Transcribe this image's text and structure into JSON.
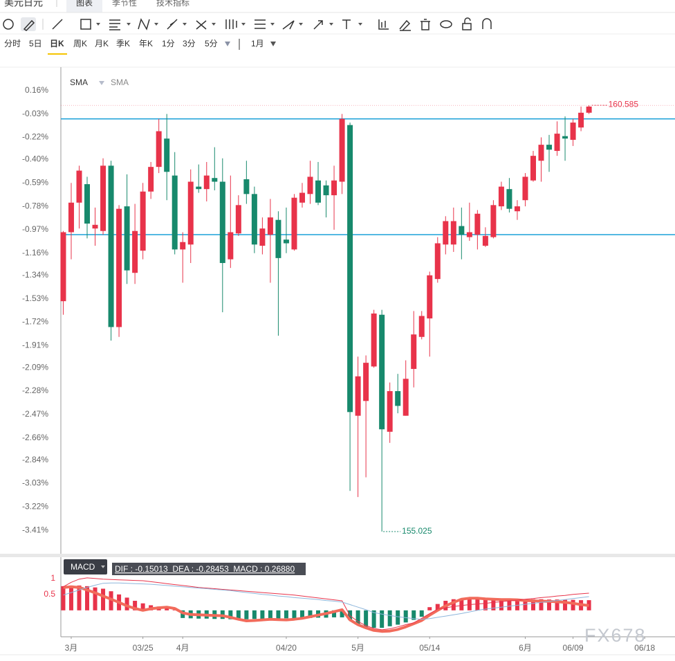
{
  "header": {
    "tabs": [
      "美元日元",
      "图表",
      "季节性",
      "技术指标"
    ],
    "periods": [
      "分时",
      "5日",
      "日K",
      "周K",
      "月K",
      "季K",
      "年K",
      "1分",
      "3分",
      "5分"
    ],
    "interval": "1月",
    "watermark": "FX678"
  },
  "chart_data": [
    {
      "type": "candlestick",
      "legend": [
        "SMA",
        "SMA"
      ],
      "up_color": "#e8334a",
      "down_color": "#17896c",
      "xlim": [
        -0.3,
        76.8
      ],
      "ylim": [
        -3.6,
        0.35
      ],
      "yticks": [
        {
          "value": 0.16,
          "label": "0.16%"
        },
        {
          "value": -0.03,
          "label": "-0.03%"
        },
        {
          "value": -0.22,
          "label": "-0.22%"
        },
        {
          "value": -0.4,
          "label": "-0.40%"
        },
        {
          "value": -0.59,
          "label": "-0.59%"
        },
        {
          "value": -0.78,
          "label": "-0.78%"
        },
        {
          "value": -0.97,
          "label": "-0.97%"
        },
        {
          "value": -1.16,
          "label": "-1.16%"
        },
        {
          "value": -1.34,
          "label": "-1.34%"
        },
        {
          "value": -1.53,
          "label": "-1.53%"
        },
        {
          "value": -1.72,
          "label": "-1.72%"
        },
        {
          "value": -1.91,
          "label": "-1.91%"
        },
        {
          "value": -2.09,
          "label": "-2.09%"
        },
        {
          "value": -2.28,
          "label": "-2.28%"
        },
        {
          "value": -2.47,
          "label": "-2.47%"
        },
        {
          "value": -2.66,
          "label": "-2.66%"
        },
        {
          "value": -2.84,
          "label": "-2.84%"
        },
        {
          "value": -3.03,
          "label": "-3.03%"
        },
        {
          "value": -3.22,
          "label": "-3.22%"
        },
        {
          "value": -3.41,
          "label": "-3.41%"
        }
      ],
      "open": [
        -1.55,
        -0.99,
        -0.75,
        -0.6,
        -0.96,
        -0.98,
        -0.45,
        -1.76,
        -0.78,
        -1.32,
        -1.14,
        -0.66,
        -0.46,
        -0.23,
        -0.53,
        -1.13,
        -1.09,
        -0.62,
        -0.64,
        -0.55,
        -0.58,
        -1.21,
        -1.0,
        -0.56,
        -0.68,
        -1.1,
        -1.01,
        -0.89,
        -1.05,
        -1.13,
        -0.75,
        -0.68,
        -0.57,
        -0.61,
        -0.69,
        -0.58,
        -0.12,
        -2.48,
        -2.36,
        -2.08,
        -1.66,
        -2.61,
        -2.28,
        -2.48,
        -2.1,
        -1.84,
        -1.69,
        -1.37,
        -1.09,
        -1.09,
        -0.94,
        -1.03,
        -1.01,
        -1.1,
        -1.03,
        -0.78,
        -0.64,
        -0.82,
        -0.73,
        -0.57,
        -0.41,
        -0.28,
        -0.33,
        -0.21,
        -0.24,
        -0.14,
        -0.02
      ],
      "high": [
        -0.98,
        -0.59,
        -0.45,
        -0.54,
        -0.79,
        -0.39,
        -0.41,
        -0.77,
        -0.52,
        -0.76,
        -0.59,
        -0.42,
        -0.07,
        -0.03,
        -0.34,
        -0.99,
        -0.48,
        -0.44,
        -0.42,
        -0.3,
        -0.39,
        -0.53,
        -0.69,
        -0.41,
        -0.62,
        -0.87,
        -0.72,
        -0.82,
        -0.79,
        -0.68,
        -0.59,
        -0.41,
        -0.42,
        -0.57,
        -0.45,
        -0.03,
        -0.1,
        -2.0,
        -1.99,
        -1.62,
        -1.62,
        -2.21,
        -2.14,
        -2.03,
        -1.63,
        -1.63,
        -1.31,
        -1.03,
        -0.86,
        -0.79,
        -0.79,
        -0.75,
        -0.81,
        -0.95,
        -0.73,
        -0.58,
        -0.55,
        -0.73,
        -0.51,
        -0.33,
        -0.22,
        -0.2,
        -0.09,
        -0.05,
        -0.07,
        0.03,
        0.04
      ],
      "low": [
        -1.66,
        -1.21,
        -0.96,
        -1.04,
        -1.1,
        -1.01,
        -1.87,
        -1.84,
        -1.41,
        -1.41,
        -1.21,
        -0.72,
        -0.51,
        -0.73,
        -1.17,
        -1.4,
        -1.24,
        -0.67,
        -0.74,
        -0.65,
        -1.64,
        -1.28,
        -1.02,
        -0.76,
        -1.16,
        -1.17,
        -1.4,
        -1.83,
        -1.16,
        -1.14,
        -0.79,
        -0.76,
        -0.77,
        -0.87,
        -0.97,
        -0.68,
        -3.09,
        -3.14,
        -2.98,
        -2.09,
        -3.42,
        -2.7,
        -2.46,
        -2.48,
        -2.25,
        -1.86,
        -2.0,
        -1.4,
        -1.17,
        -1.15,
        -1.21,
        -1.06,
        -1.13,
        -1.11,
        -1.04,
        -0.81,
        -0.83,
        -0.89,
        -0.78,
        -0.58,
        -0.58,
        -0.5,
        -0.37,
        -0.41,
        -0.29,
        -0.17,
        -0.03
      ],
      "close": [
        -0.99,
        -0.75,
        -0.49,
        -0.92,
        -0.93,
        -0.45,
        -1.76,
        -0.8,
        -1.3,
        -0.98,
        -0.66,
        -0.46,
        -0.17,
        -0.5,
        -1.13,
        -1.07,
        -0.58,
        -0.64,
        -0.53,
        -0.58,
        -1.24,
        -0.99,
        -0.77,
        -0.68,
        -1.09,
        -0.96,
        -0.87,
        -1.2,
        -1.08,
        -0.71,
        -0.67,
        -0.54,
        -0.75,
        -0.69,
        -0.57,
        -0.07,
        -2.45,
        -2.16,
        -2.05,
        -1.65,
        -2.59,
        -2.28,
        -2.4,
        -2.18,
        -1.82,
        -1.67,
        -1.34,
        -1.08,
        -0.9,
        -0.9,
        -1.01,
        -0.99,
        -0.84,
        -1.02,
        -0.77,
        -0.62,
        -0.8,
        -0.78,
        -0.54,
        -0.37,
        -0.28,
        -0.32,
        -0.19,
        -0.23,
        -0.1,
        -0.02,
        0.03
      ],
      "hlines": [
        -0.07,
        -1.01
      ],
      "hline_color": "#1aa0d8",
      "high_label": "160.585",
      "low_label": "155.025"
    },
    {
      "type": "macd",
      "indicator": "MACD",
      "info": "DIF : -0.15013  DEA : -0.28453  MACD : 0.26880",
      "xlim": [
        -0.3,
        76.8
      ],
      "ylim": [
        -0.83,
        1.67
      ],
      "yticks": [
        1,
        0.5
      ],
      "xticks": [
        {
          "value": 1,
          "label": "3月"
        },
        {
          "value": 10,
          "label": "03/25"
        },
        {
          "value": 15,
          "label": "4月"
        },
        {
          "value": 28,
          "label": "04/20"
        },
        {
          "value": 37,
          "label": "5月"
        },
        {
          "value": 46,
          "label": "05/14"
        },
        {
          "value": 58,
          "label": "6月"
        },
        {
          "value": 64,
          "label": "06/09"
        },
        {
          "value": 73,
          "label": "06/18"
        }
      ],
      "histogram": {
        "up_color": "#e8334a",
        "down_color": "#17896c",
        "values": [
          0.76,
          0.78,
          0.78,
          0.76,
          0.72,
          0.68,
          0.6,
          0.5,
          0.4,
          0.3,
          0.22,
          0.16,
          0.12,
          0.08,
          0.02,
          -0.24,
          -0.25,
          -0.26,
          -0.26,
          -0.27,
          -0.27,
          -0.28,
          -0.28,
          -0.28,
          -0.27,
          -0.27,
          -0.26,
          -0.26,
          -0.25,
          -0.25,
          -0.24,
          -0.24,
          -0.23,
          -0.23,
          -0.22,
          -0.22,
          -0.3,
          -0.45,
          -0.52,
          -0.55,
          -0.55,
          -0.5,
          -0.45,
          -0.38,
          -0.3,
          -0.2,
          0.1,
          0.2,
          0.3,
          0.35,
          0.37,
          0.38,
          0.38,
          0.38,
          0.37,
          0.37,
          0.36,
          0.36,
          0.35,
          0.35,
          0.35,
          0.34,
          0.34,
          0.33,
          0.33,
          0.32,
          0.32
        ]
      },
      "series": [
        {
          "color": "#f26b5b",
          "width": 4,
          "values": [
            0.72,
            0.74,
            0.72,
            0.64,
            0.55,
            0.45,
            0.35,
            0.25,
            0.14,
            0.06,
            0.0,
            0.05,
            0.08,
            0.1,
            0.06,
            -0.08,
            -0.13,
            -0.14,
            -0.15,
            -0.16,
            -0.17,
            -0.22,
            -0.28,
            -0.33,
            -0.32,
            -0.3,
            -0.28,
            -0.29,
            -0.3,
            -0.28,
            -0.25,
            -0.2,
            -0.15,
            -0.1,
            -0.04,
            0.02,
            -0.3,
            -0.45,
            -0.55,
            -0.63,
            -0.66,
            -0.65,
            -0.6,
            -0.52,
            -0.42,
            -0.32,
            -0.15,
            0.0,
            0.14,
            0.25,
            0.35,
            0.38,
            0.38,
            0.36,
            0.35,
            0.34,
            0.34,
            0.33,
            0.31,
            0.3,
            0.29,
            0.28,
            0.27,
            0.25,
            0.22,
            0.18,
            0.15
          ]
        },
        {
          "color": "#e8334a",
          "width": 1,
          "values": [
            0.74,
            0.88,
            0.98,
            1.02,
            1.0,
            0.98,
            0.97,
            0.96,
            0.95,
            0.94,
            0.93,
            0.9,
            0.87,
            0.84,
            0.81,
            0.78,
            0.75,
            0.72,
            0.7,
            0.68,
            0.66,
            0.64,
            0.62,
            0.6,
            0.58,
            0.56,
            0.54,
            0.52,
            0.5,
            0.48,
            0.45,
            0.42,
            0.39,
            0.36,
            0.33,
            0.3,
            -0.17,
            -0.35,
            -0.48,
            -0.57,
            -0.61,
            -0.58,
            -0.52,
            -0.45,
            -0.39,
            -0.25,
            -0.1,
            0.04,
            0.08,
            0.12,
            0.15,
            0.18,
            0.2,
            0.22,
            0.25,
            0.27,
            0.3,
            0.32,
            0.35,
            0.37,
            0.4,
            0.42,
            0.45,
            0.47,
            0.5,
            0.52,
            0.54
          ]
        },
        {
          "color": "#8db6db",
          "width": 1,
          "values": [
            0.48,
            0.56,
            0.64,
            0.72,
            0.79,
            0.85,
            0.86,
            0.86,
            0.85,
            0.84,
            0.83,
            0.82,
            0.8,
            0.78,
            0.76,
            0.74,
            0.72,
            0.7,
            0.68,
            0.66,
            0.64,
            0.62,
            0.59,
            0.56,
            0.53,
            0.5,
            0.48,
            0.45,
            0.43,
            0.4,
            0.38,
            0.36,
            0.34,
            0.31,
            0.29,
            0.26,
            0.18,
            0.1,
            0.02,
            -0.07,
            -0.12,
            -0.16,
            -0.2,
            -0.23,
            -0.26,
            -0.28,
            -0.26,
            -0.22,
            -0.18,
            -0.14,
            -0.1,
            -0.05,
            0.0,
            0.04,
            0.07,
            0.1,
            0.13,
            0.16,
            0.19,
            0.22,
            0.25,
            0.28,
            0.31,
            0.34,
            0.37,
            0.4,
            0.43
          ]
        }
      ]
    }
  ]
}
